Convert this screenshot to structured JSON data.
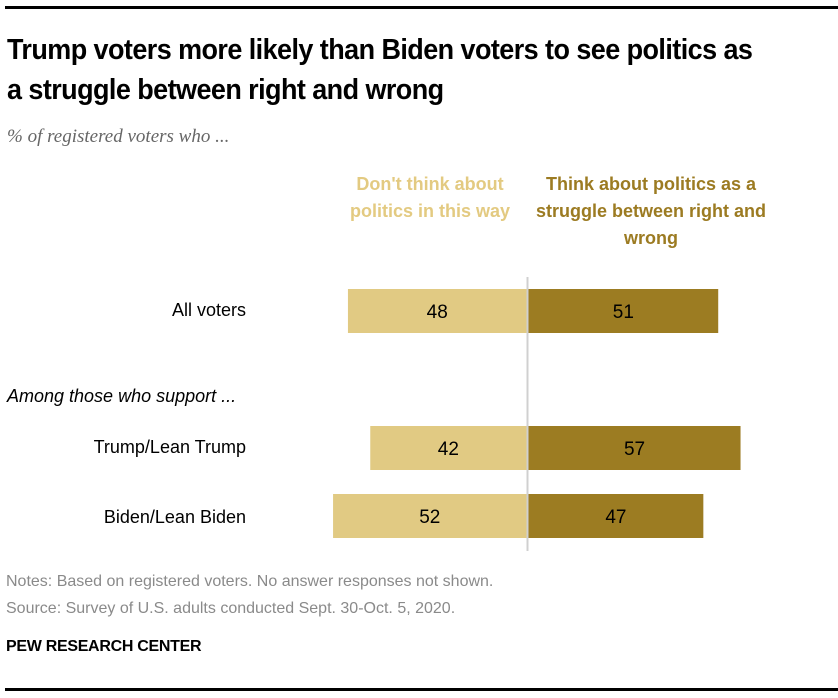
{
  "title": "Trump voters more likely than Biden voters to see politics as a struggle between right and wrong",
  "subtitle": "% of registered voters who  ...",
  "notes": "Notes: Based on registered voters. No answer responses not shown.",
  "source": "Source: Survey of U.S. adults conducted Sept. 30-Oct. 5, 2020.",
  "brand": "PEW RESEARCH CENTER",
  "colors": {
    "left": "#e1ca83",
    "right": "#9c7c22",
    "divider": "#d0d0d0"
  },
  "chart_data": {
    "type": "bar",
    "orientation": "horizontal-diverging",
    "title": "Trump voters more likely than Biden voters to see politics as a struggle between right and wrong",
    "subtitle": "% of registered voters who  ...",
    "group_label": "Among those who support ...",
    "categories": [
      "All voters",
      "Trump/Lean Trump",
      "Biden/Lean Biden"
    ],
    "series": [
      {
        "name": "Don't think about politics in this way",
        "side": "left",
        "values": [
          48,
          42,
          52
        ]
      },
      {
        "name": "Think about politics as a struggle between right and wrong",
        "side": "right",
        "values": [
          51,
          57,
          47
        ]
      }
    ],
    "legend": "top",
    "grid": false,
    "xlim": [
      0,
      100
    ]
  }
}
